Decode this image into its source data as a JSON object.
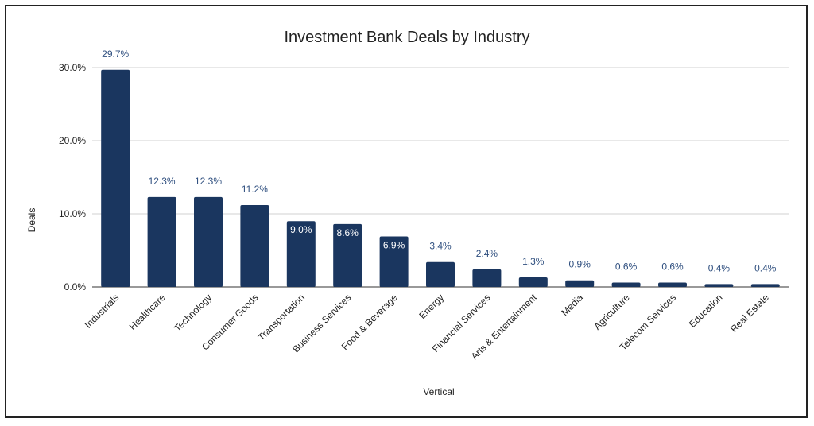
{
  "chart_data": {
    "type": "bar",
    "title": "Investment Bank Deals by Industry",
    "xlabel": "Vertical",
    "ylabel": "Deals",
    "ylim": [
      0,
      30
    ],
    "yticks": [
      "0.0%",
      "10.0%",
      "20.0%",
      "30.0%"
    ],
    "grid": true,
    "categories": [
      "Industrials",
      "Healthcare",
      "Technology",
      "Consumer Goods",
      "Transportation",
      "Business Services",
      "Food & Beverage",
      "Energy",
      "Financial Services",
      "Arts & Entertainment",
      "Media",
      "Agriculture",
      "Telecom Services",
      "Education",
      "Real Estate"
    ],
    "values": [
      29.7,
      12.3,
      12.3,
      11.2,
      9.0,
      8.6,
      6.9,
      3.4,
      2.4,
      1.3,
      0.9,
      0.6,
      0.6,
      0.4,
      0.4
    ],
    "labels": [
      "29.7%",
      "12.3%",
      "12.3%",
      "11.2%",
      "9.0%",
      "8.6%",
      "6.9%",
      "3.4%",
      "2.4%",
      "1.3%",
      "0.9%",
      "0.6%",
      "0.6%",
      "0.4%",
      "0.4%"
    ],
    "bar_color": "#1a365f",
    "label_color_outside": "#2f4f7f",
    "label_color_inside": "#ffffff"
  }
}
